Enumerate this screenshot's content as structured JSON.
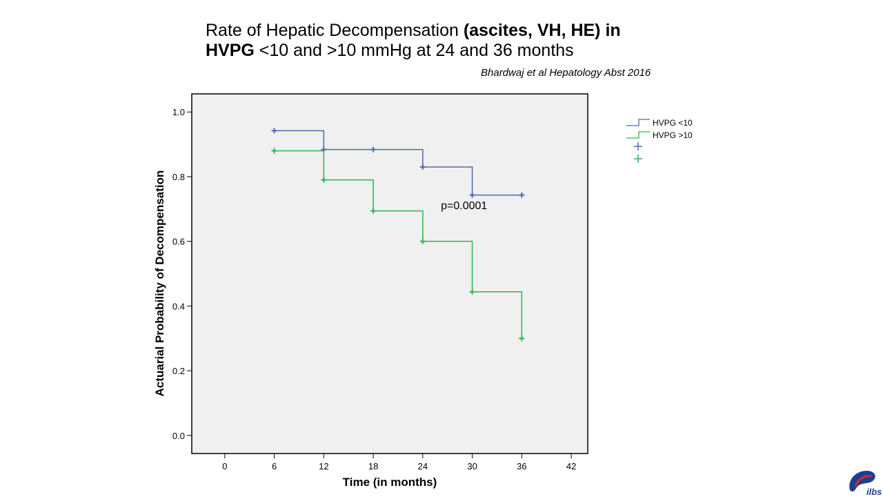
{
  "slide": {
    "title_normal_1": "Rate of Hepatic Decompensation ",
    "title_bold_1": "(ascites, VH, HE) in",
    "title_bold_2": "HVPG",
    "title_normal_2": " <10  and >10 mmHg  at 24 and 36 months",
    "citation": "Bhardwaj et al Hepatology Abst 2016",
    "logo_text": "ilbs"
  },
  "chart_data": {
    "type": "line",
    "step": true,
    "xlabel": "Time (in months)",
    "ylabel": "Actuarial Probability of Decompensation",
    "xlim": [
      -4,
      44
    ],
    "ylim": [
      -0.056,
      1.056
    ],
    "xticks": [
      0,
      6,
      12,
      18,
      24,
      30,
      36,
      42
    ],
    "yticks": [
      0.0,
      0.2,
      0.4,
      0.6,
      0.8,
      1.0
    ],
    "ytick_labels": [
      "0.0",
      "0.2",
      "0.4",
      "0.6",
      "0.8",
      "1.0"
    ],
    "grid": false,
    "plot_background": "#f0f0f0",
    "annotation": "p=0.0001",
    "annotation_at": {
      "x": 26.2,
      "y": 0.7
    },
    "legend_position": "right",
    "series": [
      {
        "name": "HVPG <10",
        "color": "#4a6bb0",
        "x": [
          6,
          12,
          18,
          24,
          30,
          36
        ],
        "y": [
          0.942,
          0.884,
          0.884,
          0.83,
          0.743,
          0.743
        ]
      },
      {
        "name": "HVPG >10",
        "color": "#2fb34a",
        "x": [
          6,
          12,
          18,
          24,
          30,
          36
        ],
        "y": [
          0.88,
          0.79,
          0.694,
          0.6,
          0.444,
          0.3
        ]
      }
    ]
  }
}
